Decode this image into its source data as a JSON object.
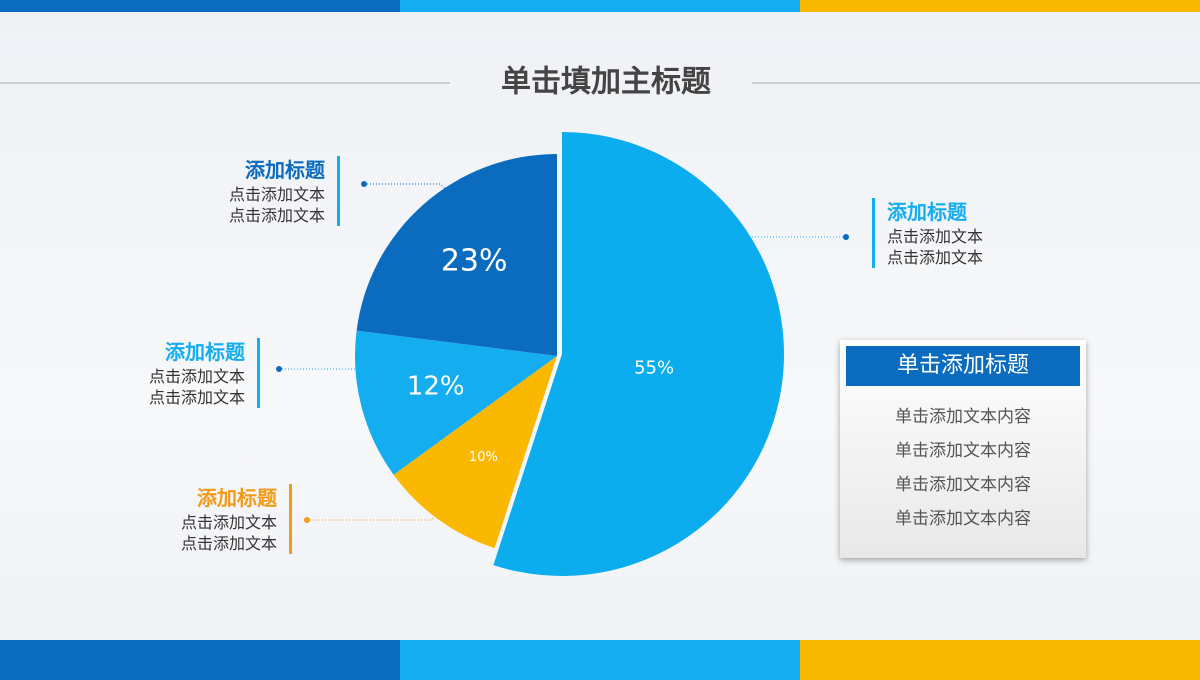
{
  "chart_data": {
    "type": "pie",
    "title": "单击填加主标题",
    "values": [
      55,
      10,
      12,
      23
    ],
    "value_labels": [
      "55%",
      "10%",
      "12%",
      "23%"
    ],
    "colors": [
      "#0badee",
      "#fbb800",
      "#14aef0",
      "#0b6cbf"
    ]
  },
  "callouts": [
    {
      "title": "添加标题",
      "lines": [
        "点击添加文本",
        "点击添加文本"
      ]
    },
    {
      "title": "添加标题",
      "lines": [
        "点击添加文本",
        "点击添加文本"
      ]
    },
    {
      "title": "添加标题",
      "lines": [
        "点击添加文本",
        "点击添加文本"
      ]
    },
    {
      "title": "添加标题",
      "lines": [
        "点击添加文本",
        "点击添加文本"
      ]
    }
  ],
  "panel": {
    "title": "单击添加标题",
    "items": [
      "单击添加文本内容",
      "单击添加文本内容",
      "单击添加文本内容",
      "单击添加文本内容"
    ]
  }
}
